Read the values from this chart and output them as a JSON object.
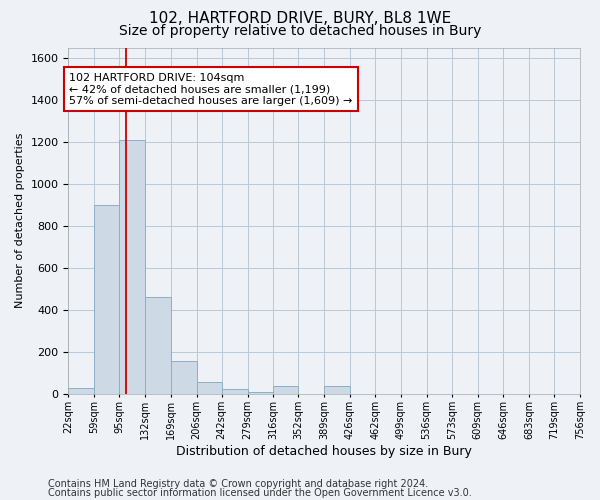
{
  "title1": "102, HARTFORD DRIVE, BURY, BL8 1WE",
  "title2": "Size of property relative to detached houses in Bury",
  "xlabel": "Distribution of detached houses by size in Bury",
  "ylabel": "Number of detached properties",
  "bin_edges": [
    22,
    59,
    95,
    132,
    169,
    206,
    242,
    279,
    316,
    352,
    389,
    426,
    462,
    499,
    536,
    573,
    609,
    646,
    683,
    719,
    756
  ],
  "bar_heights": [
    30,
    900,
    1210,
    460,
    155,
    55,
    25,
    10,
    40,
    0,
    40,
    0,
    0,
    0,
    0,
    0,
    0,
    0,
    0,
    0
  ],
  "bar_color": "#cdd9e5",
  "bar_edgecolor": "#8aafc8",
  "vline_x": 104,
  "vline_color": "#cc0000",
  "ylim": [
    0,
    1650
  ],
  "yticks": [
    0,
    200,
    400,
    600,
    800,
    1000,
    1200,
    1400,
    1600
  ],
  "annotation_line1": "102 HARTFORD DRIVE: 104sqm",
  "annotation_line2": "← 42% of detached houses are smaller (1,199)",
  "annotation_line3": "57% of semi-detached houses are larger (1,609) →",
  "annotation_box_color": "white",
  "annotation_box_edgecolor": "#cc0000",
  "footer_line1": "Contains HM Land Registry data © Crown copyright and database right 2024.",
  "footer_line2": "Contains public sector information licensed under the Open Government Licence v3.0.",
  "background_color": "#eef2f7",
  "plot_background_color": "#eef2f7",
  "grid_color": "#b8c8d8",
  "title1_fontsize": 11,
  "title2_fontsize": 10,
  "ylabel_fontsize": 8,
  "xlabel_fontsize": 9,
  "footer_fontsize": 7,
  "tick_fontsize": 8,
  "xtick_fontsize": 7
}
